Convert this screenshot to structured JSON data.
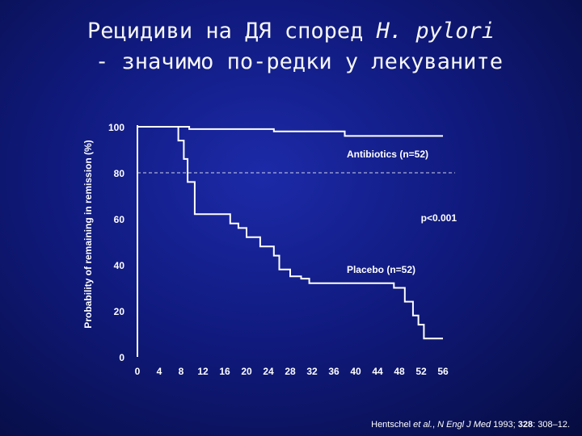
{
  "title": {
    "line1_prefix": "Рецидиви на ДЯ според ",
    "line1_italic": "H. pylori",
    "line2": "- значимо по-редки у лекуваните"
  },
  "citation": {
    "authors": "Hentschel ",
    "etal": "et al.",
    "sep": ", ",
    "journal": "N Engl J Med",
    "year": " 1993; ",
    "volume": "328",
    "pages": ": 308–12."
  },
  "chart_data": {
    "type": "line",
    "step": true,
    "ylabel": "Probability of remaining in remission (%)",
    "xlabel": "",
    "xlim": [
      0,
      56
    ],
    "ylim": [
      0,
      100
    ],
    "x_ticks": [
      0,
      4,
      8,
      12,
      16,
      20,
      24,
      28,
      32,
      36,
      40,
      44,
      48,
      52,
      56
    ],
    "y_ticks": [
      0,
      20,
      40,
      60,
      80,
      100
    ],
    "reference_line": {
      "y": 80,
      "style": "dashed"
    },
    "annotations": [
      "Antibiotics (n=52)",
      "p<0.001",
      "Placebo (n=52)"
    ],
    "series": [
      {
        "name": "Antibiotics (n=52)",
        "color": "#ffffff",
        "points": [
          [
            0,
            100
          ],
          [
            9.5,
            100
          ],
          [
            9.5,
            99
          ],
          [
            25,
            99
          ],
          [
            25,
            98
          ],
          [
            38,
            98
          ],
          [
            38,
            96
          ],
          [
            56,
            96
          ]
        ]
      },
      {
        "name": "Placebo (n=52)",
        "color": "#ffffff",
        "points": [
          [
            0,
            100
          ],
          [
            7.5,
            100
          ],
          [
            7.5,
            94
          ],
          [
            8.5,
            94
          ],
          [
            8.5,
            86
          ],
          [
            9.2,
            86
          ],
          [
            9.2,
            76
          ],
          [
            10.5,
            76
          ],
          [
            10.5,
            62
          ],
          [
            17,
            62
          ],
          [
            17,
            58
          ],
          [
            18.5,
            58
          ],
          [
            18.5,
            56
          ],
          [
            20,
            56
          ],
          [
            20,
            52
          ],
          [
            22.5,
            52
          ],
          [
            22.5,
            48
          ],
          [
            25,
            48
          ],
          [
            25,
            44
          ],
          [
            26,
            44
          ],
          [
            26,
            38
          ],
          [
            28,
            38
          ],
          [
            28,
            35
          ],
          [
            30,
            35
          ],
          [
            30,
            34
          ],
          [
            31.5,
            34
          ],
          [
            31.5,
            32
          ],
          [
            47,
            32
          ],
          [
            47,
            30
          ],
          [
            49,
            30
          ],
          [
            49,
            24
          ],
          [
            50.5,
            24
          ],
          [
            50.5,
            18
          ],
          [
            51.5,
            18
          ],
          [
            51.5,
            14
          ],
          [
            52.5,
            14
          ],
          [
            52.5,
            8
          ],
          [
            56,
            8
          ]
        ]
      }
    ]
  }
}
